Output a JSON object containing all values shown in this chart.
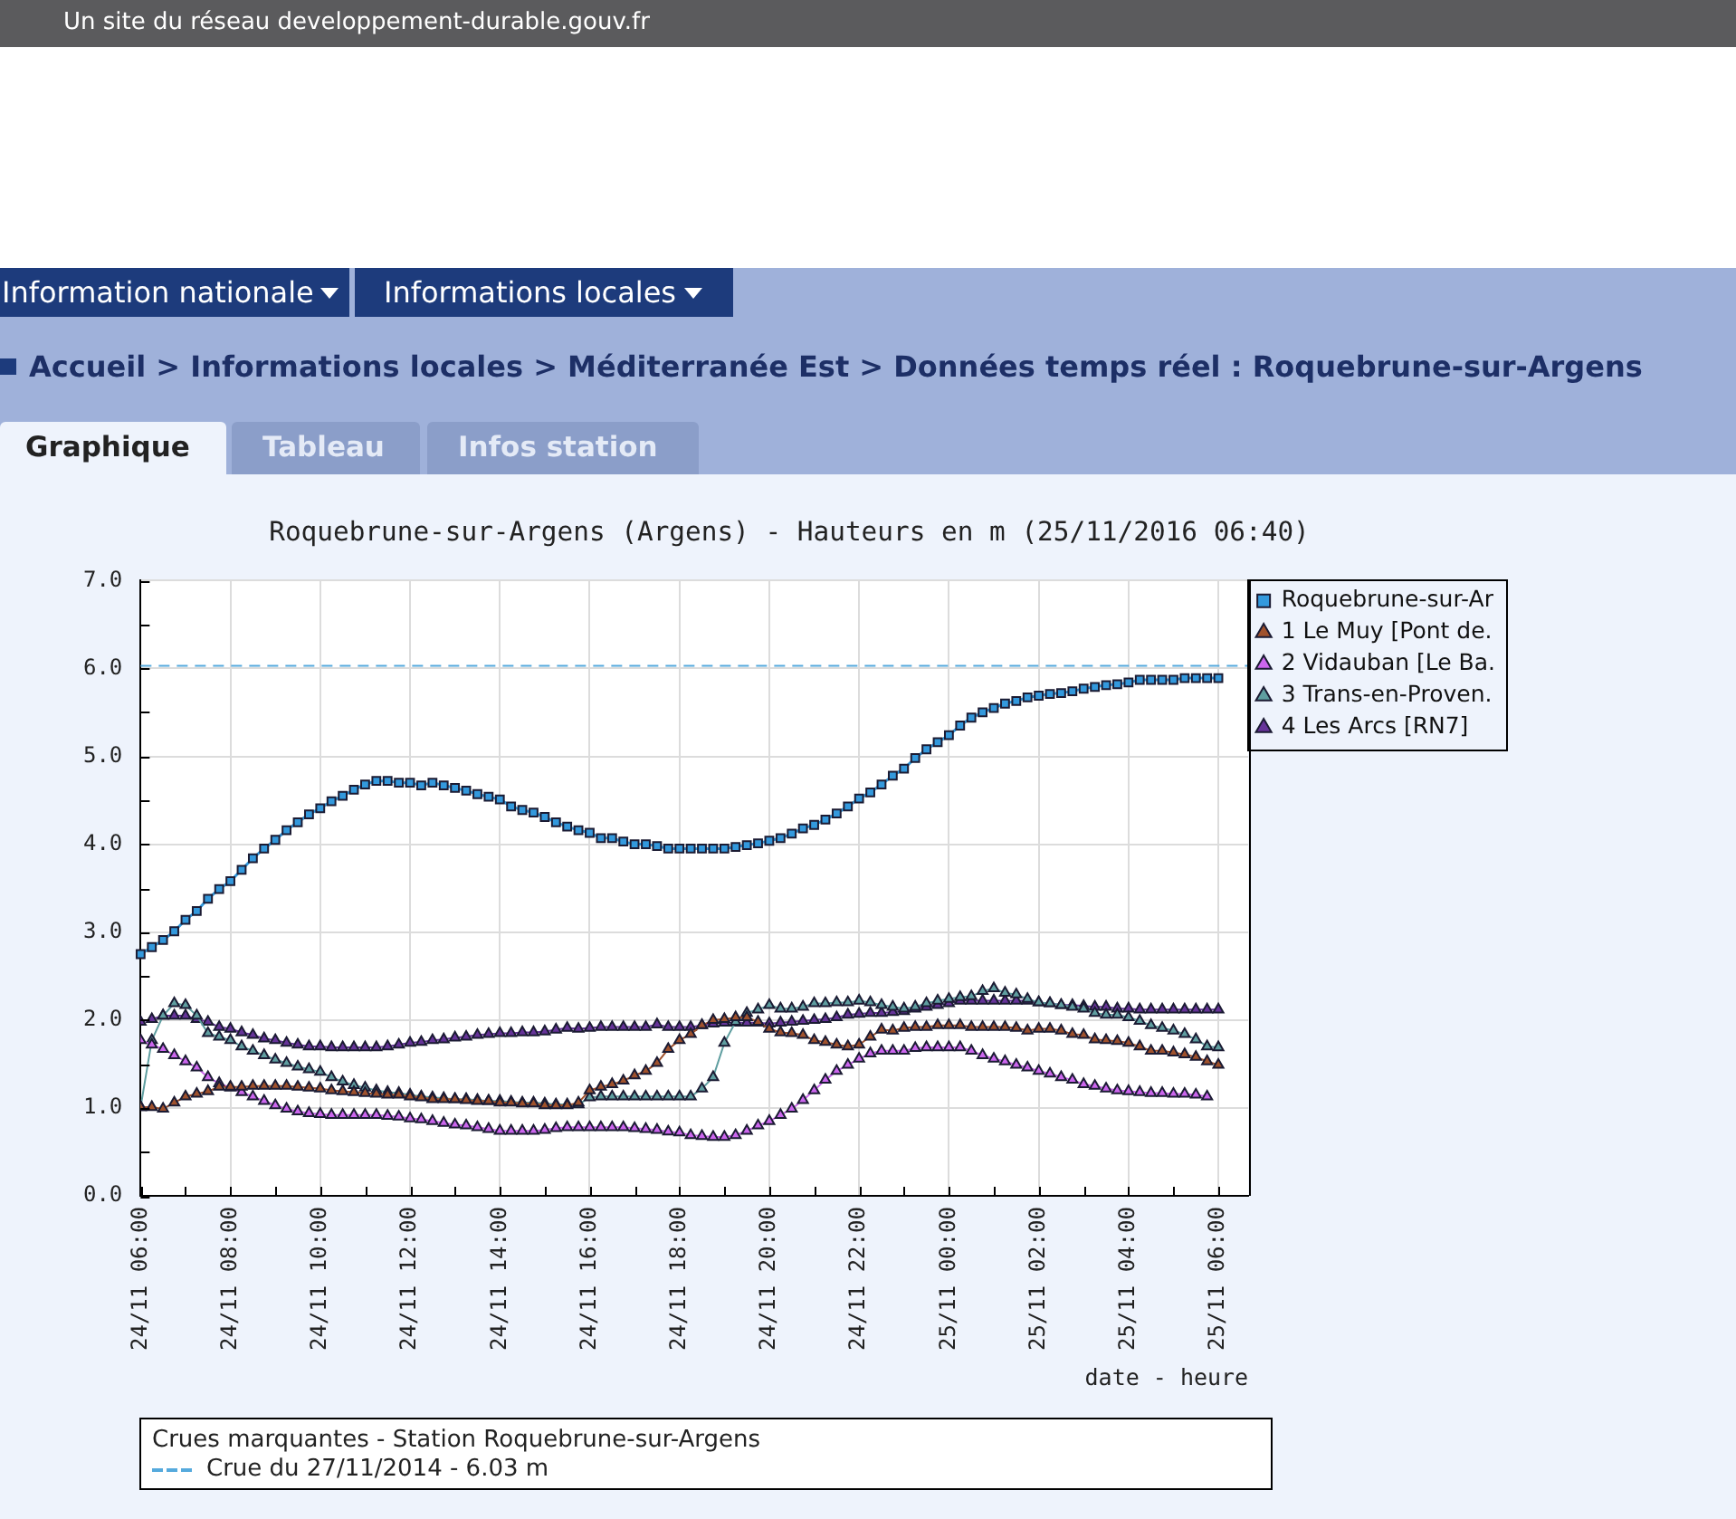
{
  "chart_data": {
    "type": "line",
    "title": "Roquebrune-sur-Argens (Argens) - Hauteurs en m (25/11/2016 06:40)",
    "xlabel": "date - heure",
    "x": [
      "2016-11-24T06:00",
      "2016-11-24T06:15",
      "2016-11-24T06:30",
      "2016-11-24T06:45",
      "2016-11-24T07:00",
      "2016-11-24T07:15",
      "2016-11-24T07:30",
      "2016-11-24T07:45",
      "2016-11-24T08:00",
      "2016-11-24T08:15",
      "2016-11-24T08:30",
      "2016-11-24T08:45",
      "2016-11-24T09:00",
      "2016-11-24T09:15",
      "2016-11-24T09:30",
      "2016-11-24T09:45",
      "2016-11-24T10:00",
      "2016-11-24T10:15",
      "2016-11-24T10:30",
      "2016-11-24T10:45",
      "2016-11-24T11:00",
      "2016-11-24T11:15",
      "2016-11-24T11:30",
      "2016-11-24T11:45",
      "2016-11-24T12:00",
      "2016-11-24T12:15",
      "2016-11-24T12:30",
      "2016-11-24T12:45",
      "2016-11-24T13:00",
      "2016-11-24T13:15",
      "2016-11-24T13:30",
      "2016-11-24T13:45",
      "2016-11-24T14:00",
      "2016-11-24T14:15",
      "2016-11-24T14:30",
      "2016-11-24T14:45",
      "2016-11-24T15:00",
      "2016-11-24T15:15",
      "2016-11-24T15:30",
      "2016-11-24T15:45",
      "2016-11-24T16:00",
      "2016-11-24T16:15",
      "2016-11-24T16:30",
      "2016-11-24T16:45",
      "2016-11-24T17:00",
      "2016-11-24T17:15",
      "2016-11-24T17:30",
      "2016-11-24T17:45",
      "2016-11-24T18:00",
      "2016-11-24T18:15",
      "2016-11-24T18:30",
      "2016-11-24T18:45",
      "2016-11-24T19:00",
      "2016-11-24T19:15",
      "2016-11-24T19:30",
      "2016-11-24T19:45",
      "2016-11-24T20:00",
      "2016-11-24T20:15",
      "2016-11-24T20:30",
      "2016-11-24T20:45",
      "2016-11-24T21:00",
      "2016-11-24T21:15",
      "2016-11-24T21:30",
      "2016-11-24T21:45",
      "2016-11-24T22:00",
      "2016-11-24T22:15",
      "2016-11-24T22:30",
      "2016-11-24T22:45",
      "2016-11-24T23:00",
      "2016-11-24T23:15",
      "2016-11-24T23:30",
      "2016-11-24T23:45",
      "2016-11-25T00:00",
      "2016-11-25T00:15",
      "2016-11-25T00:30",
      "2016-11-25T00:45",
      "2016-11-25T01:00",
      "2016-11-25T01:15",
      "2016-11-25T01:30",
      "2016-11-25T01:45",
      "2016-11-25T02:00",
      "2016-11-25T02:15",
      "2016-11-25T02:30",
      "2016-11-25T02:45",
      "2016-11-25T03:00",
      "2016-11-25T03:15",
      "2016-11-25T03:30",
      "2016-11-25T03:45",
      "2016-11-25T04:00",
      "2016-11-25T04:15",
      "2016-11-25T04:30",
      "2016-11-25T04:45",
      "2016-11-25T05:00",
      "2016-11-25T05:15",
      "2016-11-25T05:30",
      "2016-11-25T05:45",
      "2016-11-25T06:00"
    ],
    "series": [
      {
        "name": "Roquebrune-sur-Ar",
        "color": "#3399dd",
        "marker": "square",
        "values": [
          2.75,
          2.83,
          2.91,
          3.01,
          3.14,
          3.24,
          3.38,
          3.49,
          3.58,
          3.71,
          3.84,
          3.95,
          4.05,
          4.16,
          4.25,
          4.34,
          4.41,
          4.49,
          4.55,
          4.62,
          4.68,
          4.72,
          4.72,
          4.7,
          4.7,
          4.67,
          4.7,
          4.67,
          4.64,
          4.61,
          4.57,
          4.54,
          4.51,
          4.43,
          4.39,
          4.36,
          4.31,
          4.25,
          4.2,
          4.16,
          4.13,
          4.07,
          4.07,
          4.03,
          4.0,
          4.0,
          3.98,
          3.95,
          3.95,
          3.95,
          3.95,
          3.95,
          3.95,
          3.97,
          3.99,
          4.01,
          4.04,
          4.07,
          4.12,
          4.18,
          4.22,
          4.28,
          4.35,
          4.43,
          4.52,
          4.59,
          4.68,
          4.78,
          4.86,
          4.98,
          5.08,
          5.16,
          5.24,
          5.35,
          5.44,
          5.5,
          5.55,
          5.6,
          5.63,
          5.67,
          5.69,
          5.71,
          5.72,
          5.74,
          5.77,
          5.79,
          5.81,
          5.82,
          5.84,
          5.87,
          5.87,
          5.87,
          5.87,
          5.89,
          5.89,
          5.89,
          5.89
        ]
      },
      {
        "name": "1 Le Muy [Pont de.",
        "color": "#a0522d",
        "marker": "triangle",
        "values": [
          1.01,
          1.01,
          0.99,
          1.06,
          1.13,
          1.16,
          1.19,
          1.24,
          1.24,
          1.24,
          1.25,
          1.25,
          1.25,
          1.25,
          1.24,
          1.23,
          1.22,
          1.2,
          1.19,
          1.18,
          1.17,
          1.16,
          1.15,
          1.15,
          1.13,
          1.12,
          1.1,
          1.1,
          1.1,
          1.09,
          1.08,
          1.08,
          1.06,
          1.06,
          1.05,
          1.05,
          1.03,
          1.03,
          1.03,
          1.06,
          1.2,
          1.24,
          1.27,
          1.31,
          1.37,
          1.42,
          1.51,
          1.67,
          1.77,
          1.84,
          1.94,
          2.0,
          2.01,
          2.03,
          2.03,
          1.98,
          1.9,
          1.86,
          1.85,
          1.83,
          1.77,
          1.75,
          1.72,
          1.7,
          1.72,
          1.81,
          1.89,
          1.88,
          1.91,
          1.92,
          1.92,
          1.94,
          1.94,
          1.94,
          1.92,
          1.92,
          1.92,
          1.92,
          1.91,
          1.88,
          1.9,
          1.9,
          1.88,
          1.84,
          1.83,
          1.78,
          1.77,
          1.76,
          1.74,
          1.7,
          1.65,
          1.65,
          1.63,
          1.61,
          1.58,
          1.53,
          1.49
        ]
      },
      {
        "name": "2 Vidauban [Le Ba.",
        "color": "#cc66ee",
        "marker": "triangle",
        "values": [
          1.77,
          1.72,
          1.67,
          1.6,
          1.53,
          1.46,
          1.35,
          1.28,
          1.23,
          1.18,
          1.13,
          1.08,
          1.03,
          0.99,
          0.96,
          0.94,
          0.93,
          0.92,
          0.92,
          0.92,
          0.92,
          0.92,
          0.91,
          0.9,
          0.88,
          0.87,
          0.85,
          0.83,
          0.81,
          0.8,
          0.78,
          0.76,
          0.74,
          0.74,
          0.74,
          0.74,
          0.75,
          0.77,
          0.78,
          0.78,
          0.78,
          0.78,
          0.78,
          0.78,
          0.77,
          0.76,
          0.75,
          0.73,
          0.72,
          0.69,
          0.68,
          0.67,
          0.67,
          0.69,
          0.74,
          0.8,
          0.85,
          0.92,
          0.99,
          1.09,
          1.2,
          1.32,
          1.42,
          1.49,
          1.56,
          1.62,
          1.65,
          1.65,
          1.65,
          1.68,
          1.69,
          1.69,
          1.69,
          1.69,
          1.65,
          1.6,
          1.56,
          1.53,
          1.49,
          1.46,
          1.42,
          1.39,
          1.35,
          1.32,
          1.27,
          1.25,
          1.22,
          1.2,
          1.19,
          1.18,
          1.17,
          1.17,
          1.16,
          1.16,
          1.15,
          1.13,
          null
        ]
      },
      {
        "name": "3 Trans-en-Proven.",
        "color": "#5f9ea0",
        "marker": "triangle",
        "values": [
          1.01,
          1.77,
          2.05,
          2.19,
          2.17,
          2.05,
          1.85,
          1.81,
          1.77,
          1.7,
          1.65,
          1.6,
          1.55,
          1.51,
          1.47,
          1.44,
          1.41,
          1.35,
          1.3,
          1.26,
          1.23,
          1.2,
          1.18,
          1.17,
          1.15,
          1.13,
          1.12,
          1.11,
          1.1,
          1.1,
          1.09,
          1.08,
          1.08,
          1.07,
          1.06,
          1.06,
          1.05,
          1.04,
          1.04,
          1.04,
          1.12,
          1.13,
          1.13,
          1.13,
          1.13,
          1.13,
          1.13,
          1.13,
          1.13,
          1.13,
          1.22,
          1.35,
          1.74,
          1.98,
          2.08,
          2.12,
          2.17,
          2.13,
          2.13,
          2.15,
          2.19,
          2.19,
          2.2,
          2.2,
          2.22,
          2.2,
          2.17,
          2.15,
          2.13,
          2.15,
          2.19,
          2.22,
          2.24,
          2.26,
          2.27,
          2.33,
          2.36,
          2.31,
          2.29,
          2.24,
          2.2,
          2.19,
          2.17,
          2.15,
          2.13,
          2.08,
          2.06,
          2.06,
          2.03,
          1.99,
          1.94,
          1.91,
          1.88,
          1.84,
          1.78,
          1.7,
          1.69
        ]
      },
      {
        "name": "4 Les Arcs [RN7]",
        "color": "#663399",
        "marker": "triangle",
        "values": [
          1.98,
          2.01,
          2.05,
          2.05,
          2.05,
          2.01,
          1.98,
          1.92,
          1.9,
          1.86,
          1.83,
          1.79,
          1.77,
          1.74,
          1.72,
          1.7,
          1.7,
          1.69,
          1.69,
          1.69,
          1.69,
          1.69,
          1.7,
          1.72,
          1.74,
          1.75,
          1.77,
          1.78,
          1.8,
          1.81,
          1.83,
          1.84,
          1.85,
          1.85,
          1.86,
          1.86,
          1.87,
          1.89,
          1.91,
          1.9,
          1.91,
          1.92,
          1.92,
          1.92,
          1.92,
          1.92,
          1.95,
          1.92,
          1.92,
          1.92,
          1.94,
          1.96,
          1.97,
          1.97,
          1.97,
          1.97,
          1.96,
          1.97,
          1.98,
          1.99,
          2.0,
          2.01,
          2.03,
          2.06,
          2.07,
          2.08,
          2.08,
          2.09,
          2.1,
          2.13,
          2.15,
          2.17,
          2.19,
          2.22,
          2.22,
          2.22,
          2.22,
          2.22,
          2.22,
          2.22,
          2.2,
          2.19,
          2.17,
          2.17,
          2.16,
          2.15,
          2.15,
          2.13,
          2.13,
          2.12,
          2.12,
          2.12,
          2.12,
          2.12,
          2.12,
          2.12,
          2.12
        ]
      }
    ],
    "xlim": [
      "2016-11-24T06:00",
      "2016-11-25T06:40"
    ],
    "xticks": [
      {
        "value": "2016-11-24T06:00",
        "label": "24/11 06:00"
      },
      {
        "value": "2016-11-24T07:00",
        "label": null
      },
      {
        "value": "2016-11-24T08:00",
        "label": "24/11 08:00"
      },
      {
        "value": "2016-11-24T09:00",
        "label": null
      },
      {
        "value": "2016-11-24T10:00",
        "label": "24/11 10:00"
      },
      {
        "value": "2016-11-24T11:00",
        "label": null
      },
      {
        "value": "2016-11-24T12:00",
        "label": "24/11 12:00"
      },
      {
        "value": "2016-11-24T13:00",
        "label": null
      },
      {
        "value": "2016-11-24T14:00",
        "label": "24/11 14:00"
      },
      {
        "value": "2016-11-24T15:00",
        "label": null
      },
      {
        "value": "2016-11-24T16:00",
        "label": "24/11 16:00"
      },
      {
        "value": "2016-11-24T17:00",
        "label": null
      },
      {
        "value": "2016-11-24T18:00",
        "label": "24/11 18:00"
      },
      {
        "value": "2016-11-24T19:00",
        "label": null
      },
      {
        "value": "2016-11-24T20:00",
        "label": "24/11 20:00"
      },
      {
        "value": "2016-11-24T21:00",
        "label": null
      },
      {
        "value": "2016-11-24T22:00",
        "label": "24/11 22:00"
      },
      {
        "value": "2016-11-24T23:00",
        "label": null
      },
      {
        "value": "2016-11-25T00:00",
        "label": "25/11 00:00"
      },
      {
        "value": "2016-11-25T01:00",
        "label": null
      },
      {
        "value": "2016-11-25T02:00",
        "label": "25/11 02:00"
      },
      {
        "value": "2016-11-25T03:00",
        "label": null
      },
      {
        "value": "2016-11-25T04:00",
        "label": "25/11 04:00"
      },
      {
        "value": "2016-11-25T05:00",
        "label": null
      },
      {
        "value": "2016-11-25T06:00",
        "label": "25/11 06:00"
      }
    ],
    "ylim": [
      0,
      7
    ],
    "yticks": [
      {
        "value": 0,
        "label": "0.0"
      },
      {
        "value": 0.5,
        "label": null
      },
      {
        "value": 1,
        "label": "1.0"
      },
      {
        "value": 1.5,
        "label": null
      },
      {
        "value": 2,
        "label": "2.0"
      },
      {
        "value": 2.5,
        "label": null
      },
      {
        "value": 3,
        "label": "3.0"
      },
      {
        "value": 3.5,
        "label": null
      },
      {
        "value": 4,
        "label": "4.0"
      },
      {
        "value": 4.5,
        "label": null
      },
      {
        "value": 5,
        "label": "5.0"
      },
      {
        "value": 5.5,
        "label": null
      },
      {
        "value": 6,
        "label": "6.0"
      },
      {
        "value": 6.5,
        "label": null
      },
      {
        "value": 7,
        "label": "7.0"
      }
    ],
    "grid": true,
    "legend": "top right",
    "ref_lines": [
      {
        "axis": "y",
        "value": 6.03,
        "color": "#55aadd",
        "line_style": "dashed"
      }
    ],
    "annotations": [
      "Un site du réseau developpement-durable.gouv.fr",
      "Information nationale",
      "Informations locales",
      "Accueil > Informations locales > Méditerranée Est > Données temps réel : Roquebrune-sur-Argens",
      "Graphique",
      "Tableau",
      "Infos station",
      "Crues marquantes - Station Roquebrune-sur-Argens",
      "Crue du 27/11/2014 - 6.03 m"
    ]
  }
}
